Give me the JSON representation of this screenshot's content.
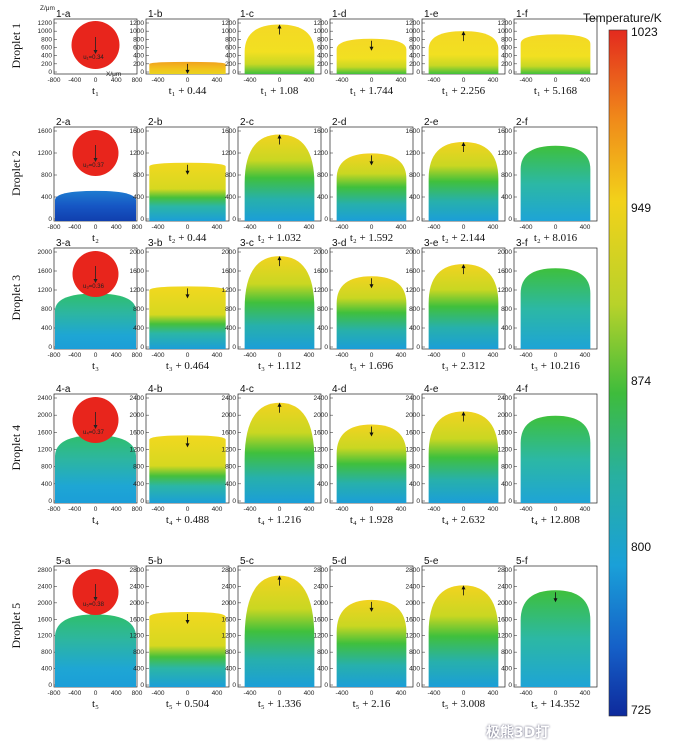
{
  "colorbar": {
    "title": "Temperature/K",
    "ticks": [
      "1023",
      "949",
      "874",
      "800",
      "725"
    ],
    "colors": [
      "#e32a1e",
      "#f08a1a",
      "#f2d21a",
      "#b8d22a",
      "#3ebc3c",
      "#28b0a0",
      "#1aa0d8",
      "#1560c8",
      "#0e2a9c"
    ]
  },
  "axes": {
    "z_label": "Z/μm",
    "x_label": "X/μm",
    "x_ticks_first": [
      "-800",
      "-400",
      "0",
      "400",
      "800"
    ],
    "x_ticks_other": [
      "-400",
      "0",
      "400"
    ]
  },
  "rows": [
    {
      "label": "Droplet 1",
      "y_ticks": [
        "1200",
        "1000",
        "800",
        "600",
        "400",
        "200",
        "0"
      ],
      "velocity": "u₁=0.34",
      "panels": [
        {
          "id": "1-a",
          "caption": "t₁"
        },
        {
          "id": "1-b",
          "caption": "t₁ + 0.44"
        },
        {
          "id": "1-c",
          "caption": "t₁ + 1.08"
        },
        {
          "id": "1-d",
          "caption": "t₁ + 1.744"
        },
        {
          "id": "1-e",
          "caption": "t₁ + 2.256"
        },
        {
          "id": "1-f",
          "caption": "t₁ + 5.168"
        }
      ]
    },
    {
      "label": "Droplet 2",
      "y_ticks": [
        "1600",
        "1200",
        "800",
        "400",
        "0"
      ],
      "velocity": "u₂=0.37",
      "panels": [
        {
          "id": "2-a",
          "caption": "t₂"
        },
        {
          "id": "2-b",
          "caption": "t₂ + 0.44"
        },
        {
          "id": "2-c",
          "caption": "t₂ + 1.032"
        },
        {
          "id": "2-d",
          "caption": "t₂ + 1.592"
        },
        {
          "id": "2-e",
          "caption": "t₂ + 2.144"
        },
        {
          "id": "2-f",
          "caption": "t₂ + 8.016"
        }
      ]
    },
    {
      "label": "Droplet 3",
      "y_ticks": [
        "2000",
        "1600",
        "1200",
        "800",
        "400",
        "0"
      ],
      "velocity": "u₃=0.36",
      "panels": [
        {
          "id": "3-a",
          "caption": "t₃"
        },
        {
          "id": "3-b",
          "caption": "t₃ + 0.464"
        },
        {
          "id": "3-c",
          "caption": "t₃ + 1.112"
        },
        {
          "id": "3-d",
          "caption": "t₃ + 1.696"
        },
        {
          "id": "3-e",
          "caption": "t₃ + 2.312"
        },
        {
          "id": "3-f",
          "caption": "t₃ + 10.216"
        }
      ]
    },
    {
      "label": "Droplet 4",
      "y_ticks": [
        "2400",
        "2000",
        "1600",
        "1200",
        "800",
        "400",
        "0"
      ],
      "velocity": "u₄=0.37",
      "panels": [
        {
          "id": "4-a",
          "caption": "t₄"
        },
        {
          "id": "4-b",
          "caption": "t₄ + 0.488"
        },
        {
          "id": "4-c",
          "caption": "t₄ + 1.216"
        },
        {
          "id": "4-d",
          "caption": "t₄ + 1.928"
        },
        {
          "id": "4-e",
          "caption": "t₄ + 2.632"
        },
        {
          "id": "4-f",
          "caption": "t₄ + 12.808"
        }
      ]
    },
    {
      "label": "Droplet 5",
      "y_ticks": [
        "2800",
        "2400",
        "2000",
        "1600",
        "1200",
        "800",
        "400",
        "0"
      ],
      "velocity": "u₅=0.38",
      "panels": [
        {
          "id": "5-a",
          "caption": "t₅"
        },
        {
          "id": "5-b",
          "caption": "t₅ + 0.504"
        },
        {
          "id": "5-c",
          "caption": "t₅ + 1.336"
        },
        {
          "id": "5-d",
          "caption": "t₅ + 2.16"
        },
        {
          "id": "5-e",
          "caption": "t₅ + 3.008"
        },
        {
          "id": "5-f",
          "caption": "t₅ + 14.352"
        }
      ]
    }
  ],
  "watermark": "极熊3D打"
}
